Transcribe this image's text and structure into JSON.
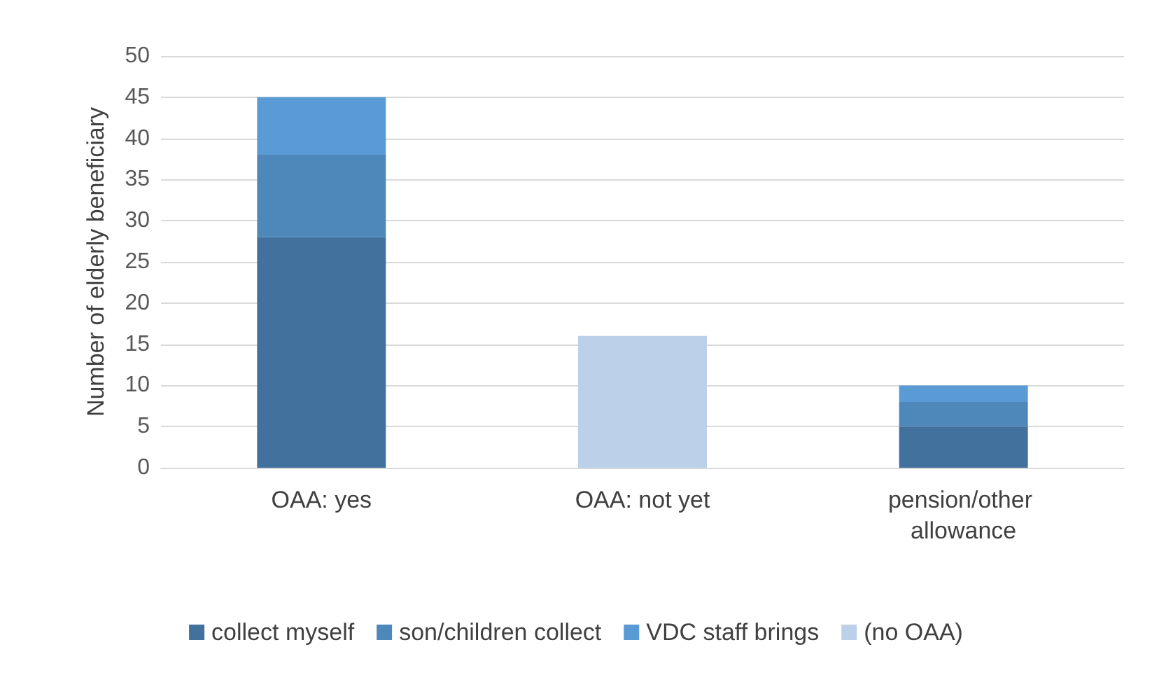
{
  "chart_data": {
    "type": "bar",
    "ylabel": "Number of elderly beneficiary",
    "categories": [
      "OAA: yes",
      "OAA: not yet",
      "pension/other allowance"
    ],
    "stacked": true,
    "series": [
      {
        "name": "collect myself",
        "color": "#41719c",
        "values": [
          28,
          null,
          5
        ]
      },
      {
        "name": "son/children collect",
        "color": "#4e88bb",
        "values": [
          10,
          null,
          3
        ]
      },
      {
        "name": "VDC staff brings",
        "color": "#5b9bd5",
        "values": [
          7,
          null,
          2
        ]
      },
      {
        "name": "(no OAA)",
        "color": "#bdd0e9",
        "values": [
          null,
          16,
          null
        ]
      }
    ],
    "ylim": [
      0,
      50
    ],
    "yticks": [
      0,
      5,
      10,
      15,
      20,
      25,
      30,
      35,
      40,
      45,
      50
    ],
    "grid": "y",
    "legend": "bottom"
  }
}
